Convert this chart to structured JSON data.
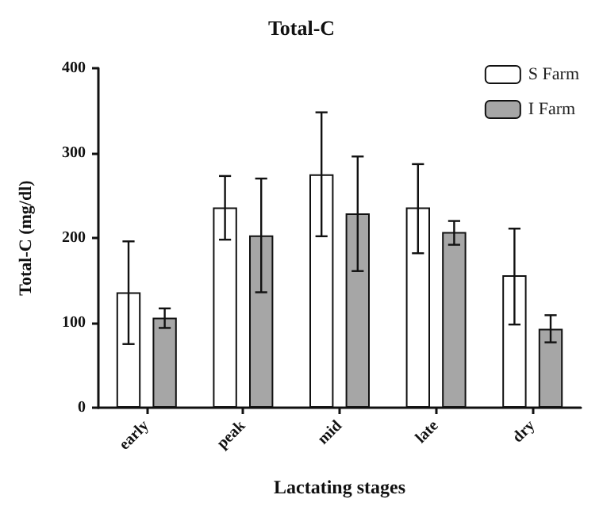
{
  "chart_data": {
    "type": "bar",
    "title": "Total-C",
    "xlabel": "Lactating stages",
    "ylabel": "Total-C (mg/dl)",
    "categories": [
      "early",
      "peak",
      "mid",
      "late",
      "dry"
    ],
    "series": [
      {
        "name": "S Farm",
        "color": "#ffffff",
        "values": [
          136,
          236,
          275,
          236,
          156
        ],
        "errors": [
          [
            75,
            196
          ],
          [
            198,
            273
          ],
          [
            202,
            348
          ],
          [
            182,
            287
          ],
          [
            98,
            211
          ]
        ]
      },
      {
        "name": "I Farm",
        "color": "#a6a6a6",
        "values": [
          106,
          203,
          229,
          207,
          93
        ],
        "errors": [
          [
            94,
            117
          ],
          [
            136,
            270
          ],
          [
            161,
            296
          ],
          [
            192,
            220
          ],
          [
            77,
            109
          ]
        ]
      }
    ],
    "ylim": [
      0,
      400
    ],
    "yticks": [
      0,
      100,
      200,
      300,
      400
    ],
    "grid": false,
    "legend": "top right"
  }
}
